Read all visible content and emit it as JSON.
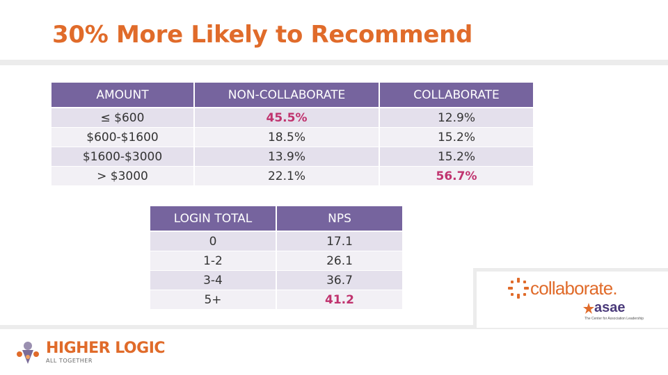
{
  "title": "30% More Likely to Recommend",
  "amount_table": {
    "headers": [
      "AMOUNT",
      "NON-COLLABORATE",
      "COLLABORATE"
    ],
    "rows": [
      [
        "≤ $600",
        "45.5%",
        "12.9%"
      ],
      [
        "$600-$1600",
        "18.5%",
        "15.2%"
      ],
      [
        "$1600-$3000",
        "13.9%",
        "15.2%"
      ],
      [
        "> $3000",
        "22.1%",
        "56.7%"
      ]
    ]
  },
  "login_table": {
    "headers": [
      "LOGIN TOTAL",
      "NPS"
    ],
    "rows": [
      [
        "0",
        "17.1"
      ],
      [
        "1-2",
        "26.1"
      ],
      [
        "3-4",
        "36.7"
      ],
      [
        "5+",
        "41.2"
      ]
    ]
  },
  "logos": {
    "collaborate": "collaborate.",
    "asae": "asae",
    "asae_tagline": "The Center for Association Leadership",
    "higher_logic": "HIGHER LOGIC",
    "higher_logic_tagline": "ALL TOGETHER"
  },
  "colors": {
    "title": "#e06b2a",
    "header_bg": "#76649e",
    "highlight": "#c0336e"
  }
}
